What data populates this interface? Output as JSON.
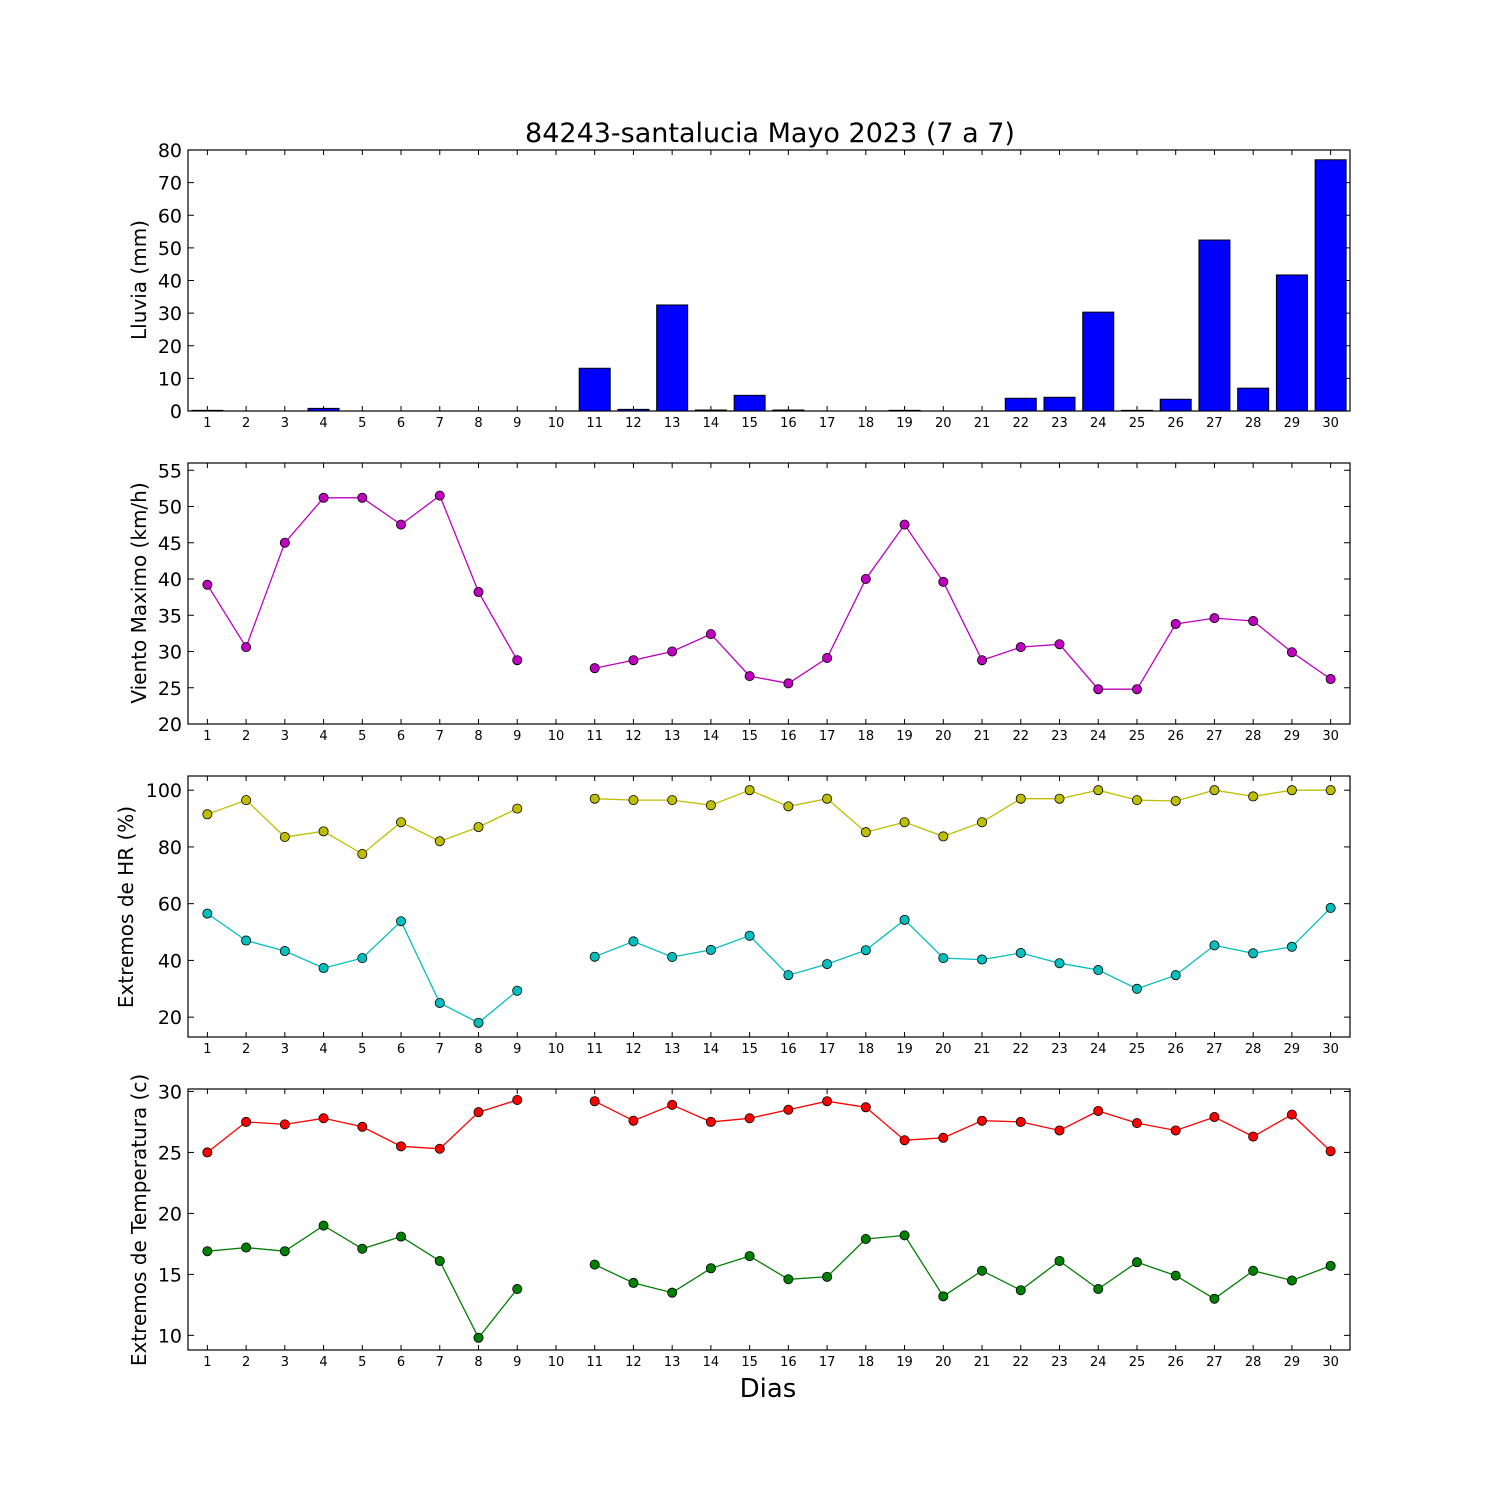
{
  "figure": {
    "title": "84243-santalucia Mayo 2023  (7 a 7)",
    "xlabel": "Dias"
  },
  "chart_data": [
    {
      "type": "bar",
      "ylabel": "Lluvia (mm)",
      "ylim": [
        0,
        80
      ],
      "yticks": [
        0,
        10,
        20,
        30,
        40,
        50,
        60,
        70,
        80
      ],
      "categories": [
        "1",
        "2",
        "3",
        "4",
        "5",
        "6",
        "7",
        "8",
        "9",
        "10",
        "11",
        "12",
        "13",
        "14",
        "15",
        "16",
        "17",
        "18",
        "19",
        "20",
        "21",
        "22",
        "23",
        "24",
        "25",
        "26",
        "27",
        "28",
        "29",
        "30"
      ],
      "series": [
        {
          "color": "#0000ff",
          "values": [
            0.2,
            0,
            0,
            0.8,
            0,
            0,
            0,
            0,
            0,
            0,
            13.1,
            0.5,
            32.5,
            0.3,
            4.8,
            0.3,
            0,
            0,
            0.2,
            0,
            0,
            3.9,
            4.2,
            30.3,
            0.2,
            3.6,
            52.4,
            7.0,
            41.7,
            77.0
          ]
        }
      ]
    },
    {
      "type": "line",
      "ylabel": "Viento Maximo (km/h)",
      "ylim": [
        20,
        56
      ],
      "yticks": [
        20,
        25,
        30,
        35,
        40,
        45,
        50,
        55
      ],
      "categories": [
        "1",
        "2",
        "3",
        "4",
        "5",
        "6",
        "7",
        "8",
        "9",
        "10",
        "11",
        "12",
        "13",
        "14",
        "15",
        "16",
        "17",
        "18",
        "19",
        "20",
        "21",
        "22",
        "23",
        "24",
        "25",
        "26",
        "27",
        "28",
        "29",
        "30"
      ],
      "series": [
        {
          "color": "#bf00bf",
          "values": [
            39.2,
            30.6,
            45.0,
            51.2,
            51.2,
            47.5,
            51.5,
            38.2,
            28.8,
            null,
            27.7,
            28.8,
            30.0,
            32.4,
            26.6,
            25.6,
            29.1,
            40.0,
            47.5,
            39.6,
            28.8,
            30.6,
            31.0,
            24.8,
            24.8,
            33.8,
            34.6,
            34.2,
            29.9,
            26.2
          ]
        }
      ]
    },
    {
      "type": "line",
      "ylabel": "Extremos de HR (%)",
      "ylim": [
        13,
        105
      ],
      "yticks": [
        20,
        40,
        60,
        80,
        100
      ],
      "categories": [
        "1",
        "2",
        "3",
        "4",
        "5",
        "6",
        "7",
        "8",
        "9",
        "10",
        "11",
        "12",
        "13",
        "14",
        "15",
        "16",
        "17",
        "18",
        "19",
        "20",
        "21",
        "22",
        "23",
        "24",
        "25",
        "26",
        "27",
        "28",
        "29",
        "30"
      ],
      "series": [
        {
          "color": "#bfbf00",
          "values": [
            91.5,
            96.5,
            83.5,
            85.5,
            77.5,
            88.7,
            82.0,
            87.0,
            93.5,
            null,
            97.0,
            96.5,
            96.5,
            94.7,
            100,
            94.3,
            97.0,
            85.2,
            88.7,
            83.7,
            88.7,
            97.0,
            97.0,
            100,
            96.5,
            96.2,
            100,
            97.8,
            100,
            100
          ]
        },
        {
          "color": "#00bfbf",
          "values": [
            56.5,
            47.0,
            43.3,
            37.3,
            40.8,
            53.8,
            25.0,
            18.0,
            29.3,
            null,
            41.3,
            46.7,
            41.2,
            43.7,
            48.7,
            34.8,
            38.7,
            43.6,
            54.3,
            40.8,
            40.3,
            42.6,
            39.0,
            36.6,
            30.0,
            34.8,
            45.3,
            42.5,
            44.8,
            58.5
          ]
        }
      ]
    },
    {
      "type": "line",
      "ylabel": "Extremos de Temperatura (c)",
      "ylim": [
        8.8,
        30.2
      ],
      "yticks": [
        10,
        15,
        20,
        25,
        30
      ],
      "categories": [
        "1",
        "2",
        "3",
        "4",
        "5",
        "6",
        "7",
        "8",
        "9",
        "10",
        "11",
        "12",
        "13",
        "14",
        "15",
        "16",
        "17",
        "18",
        "19",
        "20",
        "21",
        "22",
        "23",
        "24",
        "25",
        "26",
        "27",
        "28",
        "29",
        "30"
      ],
      "series": [
        {
          "color": "#ff0000",
          "values": [
            25.0,
            27.5,
            27.3,
            27.8,
            27.1,
            25.5,
            25.3,
            28.3,
            29.3,
            null,
            29.2,
            27.6,
            28.9,
            27.5,
            27.8,
            28.5,
            29.2,
            28.7,
            26.0,
            26.2,
            27.6,
            27.5,
            26.8,
            28.4,
            27.4,
            26.8,
            27.9,
            26.3,
            28.1,
            25.1
          ]
        },
        {
          "color": "#008000",
          "values": [
            16.9,
            17.2,
            16.9,
            19.0,
            17.1,
            18.1,
            16.1,
            9.8,
            13.8,
            null,
            15.8,
            14.3,
            13.5,
            15.5,
            16.5,
            14.6,
            14.8,
            17.9,
            18.2,
            13.2,
            15.3,
            13.7,
            16.1,
            13.8,
            16.0,
            14.9,
            13.0,
            15.3,
            14.5,
            15.7
          ]
        }
      ]
    }
  ]
}
